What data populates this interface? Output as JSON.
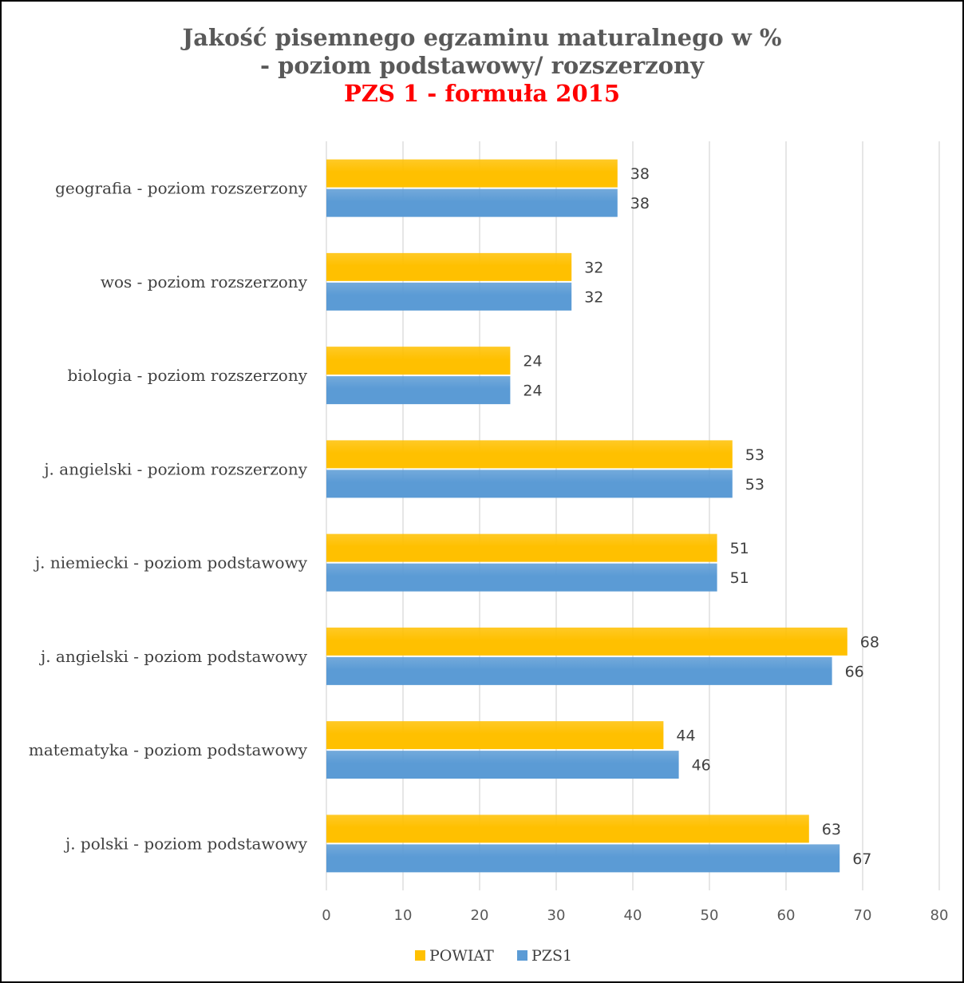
{
  "chart_data": {
    "type": "bar",
    "orientation": "horizontal",
    "title_lines": [
      "Jakość pisemnego egzaminu maturalnego w %",
      "- poziom podstawowy/ rozszerzony",
      "PZS 1 - formuła 2015"
    ],
    "categories": [
      "geografia - poziom rozszerzony",
      "wos - poziom rozszerzony",
      "biologia - poziom rozszerzony",
      "j. angielski - poziom rozszerzony",
      "j. niemiecki - poziom podstawowy",
      "j. angielski - poziom podstawowy",
      "matematyka - poziom podstawowy",
      "j. polski - poziom podstawowy"
    ],
    "series": [
      {
        "name": "POWIAT",
        "color": "#ffc000",
        "values": [
          38,
          32,
          24,
          53,
          51,
          68,
          44,
          63
        ]
      },
      {
        "name": "PZS1",
        "color": "#5b9bd5",
        "values": [
          38,
          32,
          24,
          53,
          51,
          66,
          46,
          67
        ]
      }
    ],
    "xlim": [
      0,
      80
    ],
    "xticks": [
      0,
      10,
      20,
      30,
      40,
      50,
      60,
      70,
      80
    ],
    "grid": true,
    "legend_position": "bottom",
    "title_accent_color": "#ff0000",
    "title_color": "#595959"
  }
}
